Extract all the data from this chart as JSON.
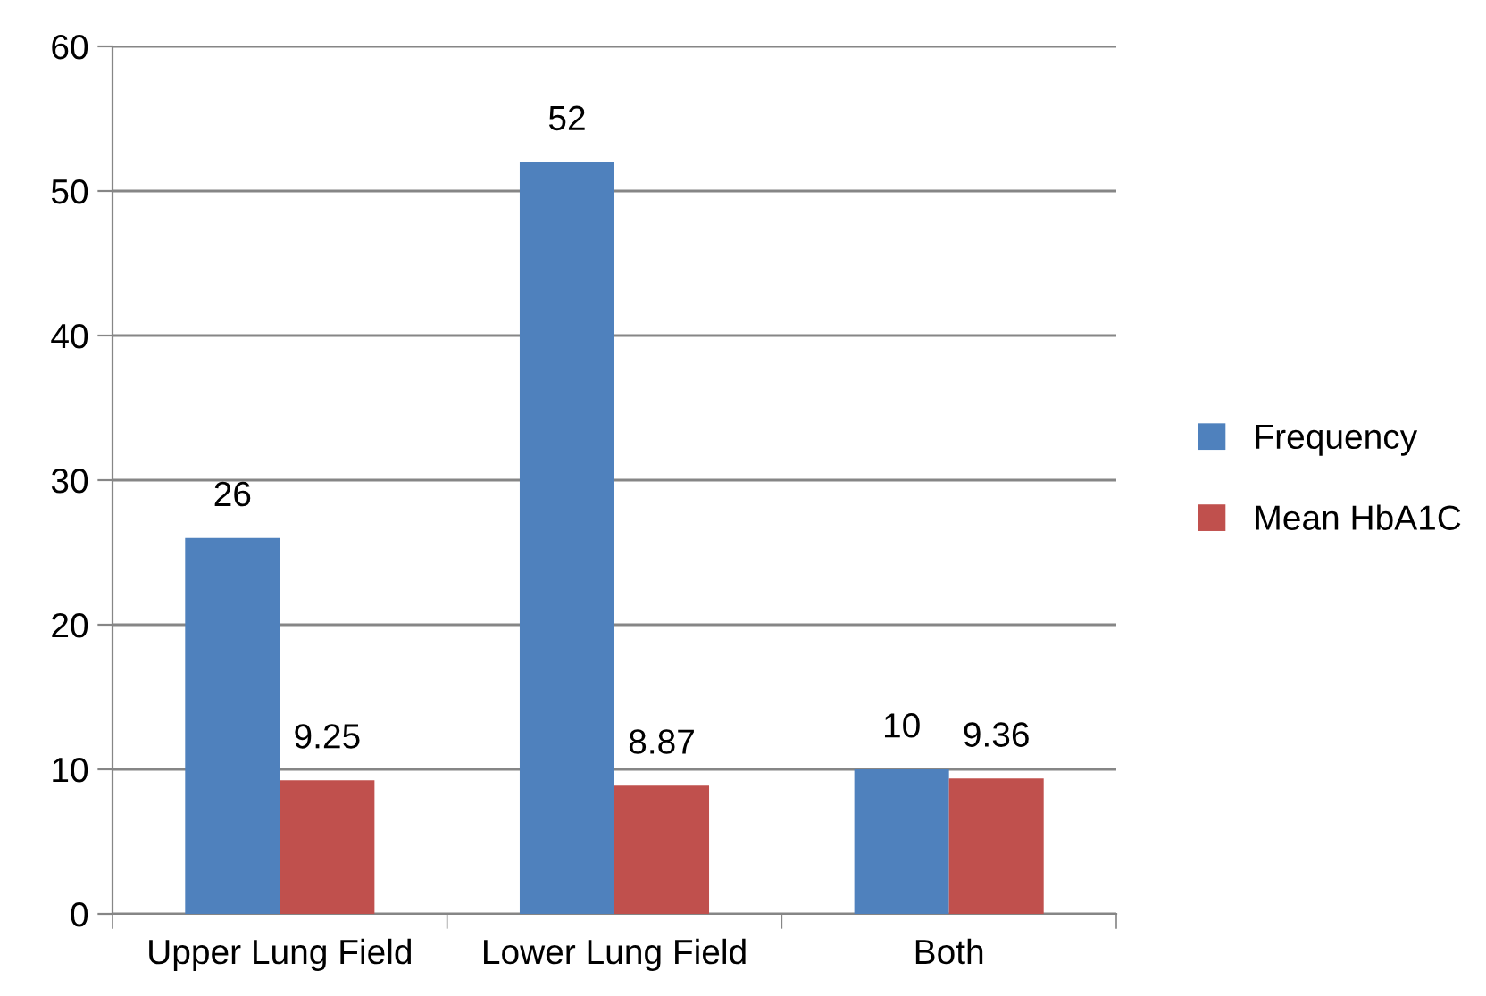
{
  "chart_data": {
    "type": "bar",
    "categories": [
      "Upper Lung Field",
      "Lower Lung Field",
      "Both"
    ],
    "series": [
      {
        "name": "Frequency",
        "color": "#4f81bd",
        "values": [
          26,
          52,
          10
        ]
      },
      {
        "name": "Mean HbA1C",
        "color": "#c0504d",
        "values": [
          9.25,
          8.87,
          9.36
        ]
      }
    ],
    "ylim": [
      0,
      60
    ],
    "yticks": [
      0,
      10,
      20,
      30,
      40,
      50,
      60
    ],
    "grid": "y",
    "legend": "right",
    "data_labels": true
  }
}
